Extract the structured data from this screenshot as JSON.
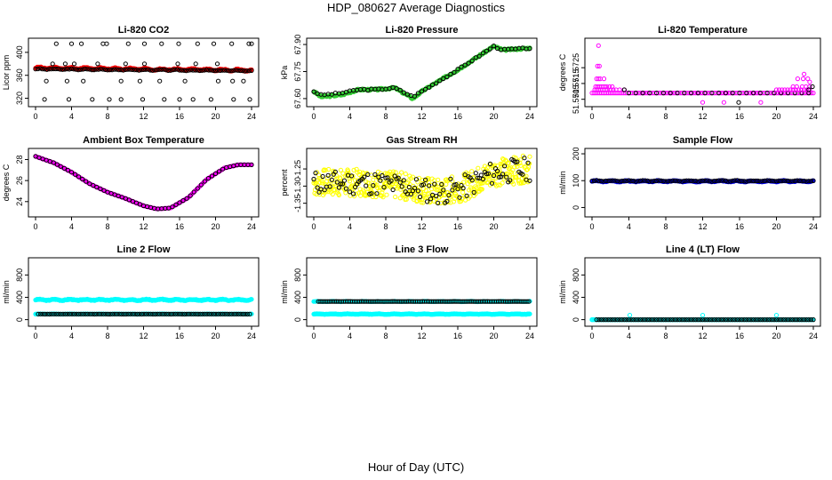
{
  "page": {
    "title": "HDP_080627  Average Diagnostics",
    "xlabel": "Hour of Day (UTC)"
  },
  "colors": {
    "black": "#000000",
    "red": "#ff0000",
    "green": "#33cc33",
    "magenta": "#ff00ff",
    "yellow": "#ffff00",
    "blue": "#0000ff",
    "cyan": "#00ffff"
  },
  "chart_data": [
    {
      "id": "co2",
      "type": "scatter",
      "title": "Li-820 CO2",
      "xlabel": "",
      "ylabel": "Licor ppm",
      "xlim": [
        0,
        24
      ],
      "ylim": [
        310,
        420
      ],
      "xticks": [
        "0",
        "4",
        "8",
        "12",
        "16",
        "20",
        "24"
      ],
      "yticks": [
        "320",
        "360",
        "400"
      ],
      "series": [
        {
          "name": "hourly",
          "color": "red",
          "filled": true,
          "gen": "band",
          "from": 0,
          "to": 24,
          "step": 0.1,
          "base": 373,
          "amp": 2,
          "drift": -4
        },
        {
          "name": "black-band",
          "color": "black",
          "filled": false,
          "gen": "band",
          "from": 0,
          "to": 24,
          "step": 0.25,
          "base": 371,
          "amp": 1,
          "drift": -3
        },
        {
          "name": "outliers",
          "color": "black",
          "filled": false,
          "x": [
            2.3,
            4.0,
            5.1,
            7.5,
            7.9,
            10.3,
            12.1,
            14.0,
            15.9,
            18.0,
            19.8,
            21.8,
            23.7,
            24.0,
            1.0,
            3.7,
            6.3,
            8.2,
            9.5,
            11.9,
            14.3,
            16.0,
            17.5,
            19.5,
            22.0,
            23.8,
            1.9,
            3.3,
            4.3,
            6.9,
            10.0,
            12.1,
            15.8,
            17.8,
            20.2,
            1.2,
            3.5,
            5.3,
            9.5,
            11.6,
            13.8,
            16.6,
            20.3,
            21.9,
            23.1
          ],
          "y": [
            415,
            415,
            415,
            415,
            415,
            415,
            415,
            415,
            415,
            415,
            415,
            415,
            415,
            415,
            318,
            318,
            318,
            318,
            318,
            318,
            318,
            318,
            318,
            318,
            318,
            318,
            380,
            380,
            380,
            380,
            380,
            380,
            380,
            380,
            380,
            350,
            350,
            350,
            350,
            350,
            350,
            350,
            350,
            350,
            350
          ]
        }
      ]
    },
    {
      "id": "pressure",
      "type": "scatter",
      "title": "Li-820 Pressure",
      "xlabel": "",
      "ylabel": "kPa",
      "xlim": [
        0,
        24
      ],
      "ylim": [
        67.57,
        67.92
      ],
      "xticks": [
        "0",
        "4",
        "8",
        "12",
        "16",
        "20",
        "24"
      ],
      "yticks": [
        "67.60",
        "67.75",
        "67.90"
      ],
      "series": [
        {
          "name": "hourly",
          "color": "green",
          "filled": true,
          "gen": "curve",
          "from": 0,
          "to": 24,
          "step": 0.12,
          "jitter": 0.01,
          "kx": [
            0,
            0.8,
            3,
            5,
            7,
            9,
            11,
            12,
            16,
            20,
            21,
            24
          ],
          "ky": [
            67.64,
            67.61,
            67.62,
            67.65,
            67.65,
            67.66,
            67.6,
            67.64,
            67.76,
            67.89,
            67.87,
            67.88
          ]
        },
        {
          "name": "averages",
          "color": "black",
          "filled": false,
          "gen": "curve",
          "from": 0,
          "to": 24,
          "step": 0.4,
          "jitter": 0.008,
          "kx": [
            0,
            0.8,
            3,
            5,
            7,
            9,
            11,
            12,
            16,
            20,
            21,
            24
          ],
          "ky": [
            67.64,
            67.62,
            67.63,
            67.65,
            67.65,
            67.66,
            67.61,
            67.64,
            67.76,
            67.89,
            67.87,
            67.88
          ]
        }
      ]
    },
    {
      "id": "temp820",
      "type": "scatter",
      "title": "Li-820 Temperature",
      "xlabel": "",
      "ylabel": "degrees C",
      "xlim": [
        0,
        24
      ],
      "ylim": [
        51.5702,
        51.5742
      ],
      "xticks": [
        "0",
        "4",
        "8",
        "12",
        "16",
        "20",
        "24"
      ],
      "yticks": [
        "51.5705",
        "51.5715",
        "51.5725"
      ],
      "series": [
        {
          "name": "baseline-magenta",
          "color": "magenta",
          "filled": false,
          "gen": "band",
          "from": 0,
          "to": 24,
          "step": 0.2,
          "base": 51.5709,
          "amp": 0,
          "drift": 0
        },
        {
          "name": "baseline-black",
          "color": "black",
          "filled": false,
          "gen": "band",
          "from": 4,
          "to": 24,
          "step": 0.75,
          "base": 51.5709,
          "amp": 0,
          "drift": 0
        },
        {
          "name": "early-spikes",
          "color": "magenta",
          "filled": false,
          "x": [
            0.3,
            0.5,
            0.7,
            0.9,
            1.1,
            1.3,
            1.5,
            1.7,
            2.0,
            2.3,
            2.6,
            3.0,
            3.5,
            0.4,
            0.6,
            0.8,
            1.0,
            1.2,
            1.4,
            1.6,
            1.9,
            2.2,
            0.5,
            0.7,
            0.9,
            1.3,
            0.6,
            0.8,
            0.7
          ],
          "y": [
            51.5711,
            51.5711,
            51.5711,
            51.5711,
            51.5711,
            51.5711,
            51.5711,
            51.5711,
            51.5711,
            51.5711,
            51.5711,
            51.5711,
            51.5711,
            51.5713,
            51.5713,
            51.5713,
            51.5713,
            51.5713,
            51.5713,
            51.5713,
            51.5713,
            51.5713,
            51.5718,
            51.5718,
            51.5718,
            51.5718,
            51.5726,
            51.5726,
            51.5739
          ]
        },
        {
          "name": "late-spikes",
          "color": "magenta",
          "filled": false,
          "x": [
            20.0,
            20.3,
            20.6,
            20.9,
            21.2,
            21.5,
            21.8,
            22.1,
            22.4,
            22.7,
            23.0,
            23.3,
            23.6,
            21.8,
            22.2,
            22.8,
            23.2,
            23.6,
            22.3,
            22.9,
            23.4,
            23.0,
            23.6
          ],
          "y": [
            51.5711,
            51.5711,
            51.5711,
            51.5711,
            51.5711,
            51.5711,
            51.5711,
            51.5711,
            51.5711,
            51.5711,
            51.5711,
            51.5711,
            51.5711,
            51.5713,
            51.5713,
            51.5713,
            51.5713,
            51.5713,
            51.5718,
            51.5718,
            51.5718,
            51.5721,
            51.5716
          ]
        },
        {
          "name": "extra-black",
          "color": "black",
          "filled": false,
          "x": [
            3.5,
            23.5,
            23.9
          ],
          "y": [
            51.5711,
            51.5711,
            51.5713
          ]
        },
        {
          "name": "low-magenta",
          "color": "magenta",
          "filled": false,
          "x": [
            12.0,
            14.3,
            18.3
          ],
          "y": [
            51.5703,
            51.5703,
            51.5703
          ]
        },
        {
          "name": "low-black",
          "color": "black",
          "filled": false,
          "x": [
            15.9
          ],
          "y": [
            51.5703
          ]
        }
      ]
    },
    {
      "id": "ambient",
      "type": "scatter",
      "title": "Ambient Box Temperature",
      "xlabel": "",
      "ylabel": "degrees C",
      "xlim": [
        0,
        24
      ],
      "ylim": [
        22.8,
        28.8
      ],
      "xticks": [
        "0",
        "4",
        "8",
        "12",
        "16",
        "20",
        "24"
      ],
      "yticks": [
        "24",
        "26",
        "28"
      ],
      "series": [
        {
          "name": "hourly",
          "color": "magenta",
          "filled": true,
          "gen": "curve",
          "from": 0,
          "to": 24,
          "step": 0.12,
          "jitter": 0,
          "kx": [
            0,
            2,
            4,
            6,
            8,
            10,
            12,
            13.5,
            15,
            17,
            19,
            21,
            22.5,
            24
          ],
          "ky": [
            28.3,
            27.7,
            26.8,
            25.7,
            24.9,
            24.3,
            23.6,
            23.3,
            23.4,
            24.4,
            26.1,
            27.2,
            27.5,
            27.5
          ]
        },
        {
          "name": "averages",
          "color": "black",
          "filled": false,
          "gen": "curve",
          "from": 0,
          "to": 24,
          "step": 0.4,
          "jitter": 0,
          "kx": [
            0,
            2,
            4,
            6,
            8,
            10,
            12,
            13.5,
            15,
            17,
            19,
            21,
            22.5,
            24
          ],
          "ky": [
            28.3,
            27.7,
            26.8,
            25.7,
            24.9,
            24.3,
            23.6,
            23.3,
            23.4,
            24.4,
            26.1,
            27.2,
            27.5,
            27.5
          ]
        }
      ]
    },
    {
      "id": "rh",
      "type": "scatter",
      "title": "Gas Stream RH",
      "xlabel": "",
      "ylabel": "percent",
      "xlim": [
        0,
        24
      ],
      "ylim": [
        -1.382,
        -1.198
      ],
      "xticks": [
        "0",
        "4",
        "8",
        "12",
        "16",
        "20",
        "24"
      ],
      "yticks": [
        "-1.25",
        "-1.30",
        "-1.35"
      ],
      "series": [
        {
          "name": "hourly",
          "color": "yellow",
          "filled": false,
          "gen": "noise",
          "from": 0,
          "to": 24,
          "step": 0.05,
          "seed": 7,
          "spread": 0.08,
          "kx": [
            0,
            6,
            10,
            14,
            17,
            20,
            24
          ],
          "ky": [
            -1.29,
            -1.29,
            -1.3,
            -1.32,
            -1.3,
            -1.26,
            -1.25
          ]
        },
        {
          "name": "averages",
          "color": "black",
          "filled": false,
          "gen": "noise",
          "from": 0,
          "to": 24,
          "step": 0.2,
          "seed": 11,
          "spread": 0.07,
          "kx": [
            0,
            6,
            10,
            14,
            17,
            20,
            24
          ],
          "ky": [
            -1.29,
            -1.29,
            -1.3,
            -1.32,
            -1.3,
            -1.26,
            -1.25
          ]
        }
      ]
    },
    {
      "id": "sampleflow",
      "type": "scatter",
      "title": "Sample Flow",
      "xlabel": "",
      "ylabel": "ml/min",
      "xlim": [
        0,
        24
      ],
      "ylim": [
        -25,
        210
      ],
      "xticks": [
        "0",
        "4",
        "8",
        "12",
        "16",
        "20",
        "24"
      ],
      "yticks": [
        "0",
        "100",
        "200"
      ],
      "series": [
        {
          "name": "hourly",
          "color": "blue",
          "filled": true,
          "gen": "band",
          "from": 0,
          "to": 24,
          "step": 0.08,
          "base": 98,
          "amp": 3,
          "drift": 0
        },
        {
          "name": "averages",
          "color": "black",
          "filled": false,
          "gen": "band",
          "from": 0,
          "to": 24,
          "step": 0.25,
          "base": 99,
          "amp": 2,
          "drift": 0
        }
      ]
    },
    {
      "id": "line2",
      "type": "scatter",
      "title": "Line 2 Flow",
      "xlabel": "",
      "ylabel": "ml/min",
      "xlim": [
        0,
        24
      ],
      "ylim": [
        -70,
        1060
      ],
      "xticks": [
        "0",
        "4",
        "8",
        "12",
        "16",
        "20",
        "24"
      ],
      "yticks": [
        "0",
        "400",
        "800"
      ],
      "series": [
        {
          "name": "upper-hourly",
          "color": "cyan",
          "filled": true,
          "gen": "band",
          "from": 0,
          "to": 24,
          "step": 0.08,
          "base": 355,
          "amp": 15,
          "drift": 0
        },
        {
          "name": "lower-hourly",
          "color": "cyan",
          "filled": true,
          "gen": "band",
          "from": 0,
          "to": 24,
          "step": 0.08,
          "base": 100,
          "amp": 3,
          "drift": 0
        },
        {
          "name": "lower-averages",
          "color": "black",
          "filled": false,
          "gen": "band",
          "from": 0.3,
          "to": 24,
          "step": 0.25,
          "base": 100,
          "amp": 1,
          "drift": 0
        }
      ]
    },
    {
      "id": "line3",
      "type": "scatter",
      "title": "Line 3 Flow",
      "xlabel": "",
      "ylabel": "ml/min",
      "xlim": [
        0,
        24
      ],
      "ylim": [
        -70,
        1060
      ],
      "xticks": [
        "0",
        "4",
        "8",
        "12",
        "16",
        "20",
        "24"
      ],
      "yticks": [
        "0",
        "400",
        "800"
      ],
      "series": [
        {
          "name": "lower-hourly",
          "color": "cyan",
          "filled": true,
          "gen": "band",
          "from": 0,
          "to": 24,
          "step": 0.06,
          "base": 100,
          "amp": 6,
          "drift": 0
        },
        {
          "name": "upper-hourly",
          "color": "cyan",
          "filled": true,
          "gen": "band",
          "from": 0,
          "to": 24,
          "step": 0.2,
          "base": 325,
          "amp": 5,
          "drift": 0
        },
        {
          "name": "upper-averages",
          "color": "black",
          "filled": false,
          "gen": "band",
          "from": 0.5,
          "to": 24,
          "step": 0.2,
          "base": 325,
          "amp": 1,
          "drift": 0
        }
      ]
    },
    {
      "id": "line4",
      "type": "scatter",
      "title": "Line 4 (LT) Flow",
      "xlabel": "",
      "ylabel": "ml/min",
      "xlim": [
        0,
        24
      ],
      "ylim": [
        -70,
        1060
      ],
      "xticks": [
        "0",
        "4",
        "8",
        "12",
        "16",
        "20",
        "24"
      ],
      "yticks": [
        "0",
        "400",
        "800"
      ],
      "series": [
        {
          "name": "hourly",
          "color": "cyan",
          "filled": false,
          "gen": "band",
          "from": 0,
          "to": 24,
          "step": 0.1,
          "base": 0,
          "amp": 0,
          "drift": 0
        },
        {
          "name": "averages",
          "color": "black",
          "filled": false,
          "gen": "band",
          "from": 0.5,
          "to": 24,
          "step": 0.25,
          "base": 0,
          "amp": 0,
          "drift": 0
        },
        {
          "name": "spikes",
          "color": "cyan",
          "filled": false,
          "x": [
            0,
            4.1,
            12.0,
            20.0
          ],
          "y": [
            0,
            80,
            80,
            80
          ]
        }
      ]
    }
  ]
}
